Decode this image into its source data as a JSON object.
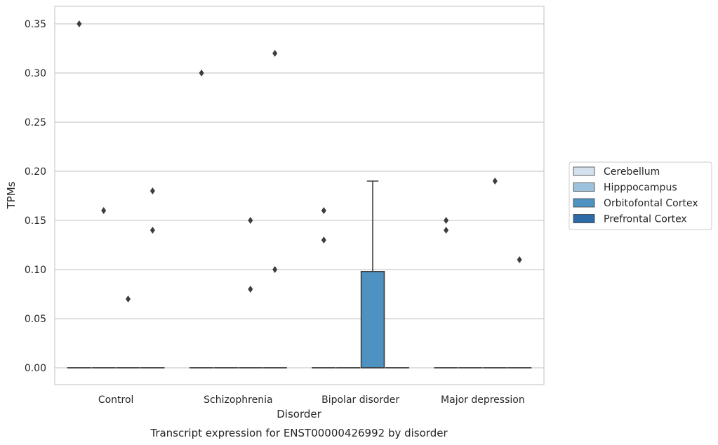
{
  "chart_data": {
    "type": "box",
    "title": "Transcript expression for ENST00000426992 by disorder",
    "xlabel": "Disorder",
    "ylabel": "TPMs",
    "ylim": [
      -0.0175,
      0.3675
    ],
    "yticks": [
      "0.00",
      "0.05",
      "0.10",
      "0.15",
      "0.20",
      "0.25",
      "0.30",
      "0.35"
    ],
    "ytick_values": [
      0,
      0.05,
      0.1,
      0.15,
      0.2,
      0.25,
      0.3,
      0.35
    ],
    "grid": "horizontal",
    "legend_position": "center-right",
    "categories": [
      "Control",
      "Schizophrenia",
      "Bipolar disorder",
      "Major depression"
    ],
    "series": [
      {
        "name": "Cerebellum",
        "color": "#d4e2ef",
        "boxes": [
          {
            "q1": 0,
            "median": 0,
            "q3": 0,
            "whisker_low": 0,
            "whisker_high": 0,
            "outliers": [
              0.35
            ]
          },
          {
            "q1": 0,
            "median": 0,
            "q3": 0,
            "whisker_low": 0,
            "whisker_high": 0,
            "outliers": [
              0.3
            ]
          },
          {
            "q1": 0,
            "median": 0,
            "q3": 0,
            "whisker_low": 0,
            "whisker_high": 0,
            "outliers": [
              0.16,
              0.13
            ]
          },
          {
            "q1": 0,
            "median": 0,
            "q3": 0,
            "whisker_low": 0,
            "whisker_high": 0,
            "outliers": [
              0.15,
              0.14
            ]
          }
        ]
      },
      {
        "name": "Hipppocampus",
        "color": "#9cc3dd",
        "boxes": [
          {
            "q1": 0,
            "median": 0,
            "q3": 0,
            "whisker_low": 0,
            "whisker_high": 0,
            "outliers": [
              0.16
            ]
          },
          {
            "q1": 0,
            "median": 0,
            "q3": 0,
            "whisker_low": 0,
            "whisker_high": 0,
            "outliers": []
          },
          {
            "q1": 0,
            "median": 0,
            "q3": 0,
            "whisker_low": 0,
            "whisker_high": 0,
            "outliers": []
          },
          {
            "q1": 0,
            "median": 0,
            "q3": 0,
            "whisker_low": 0,
            "whisker_high": 0,
            "outliers": []
          }
        ]
      },
      {
        "name": "Orbitofontal Cortex",
        "color": "#4d92c0",
        "boxes": [
          {
            "q1": 0,
            "median": 0,
            "q3": 0,
            "whisker_low": 0,
            "whisker_high": 0,
            "outliers": [
              0.07
            ]
          },
          {
            "q1": 0,
            "median": 0,
            "q3": 0,
            "whisker_low": 0,
            "whisker_high": 0,
            "outliers": [
              0.15,
              0.08
            ]
          },
          {
            "q1": 0,
            "median": 0,
            "q3": 0.098,
            "whisker_low": 0,
            "whisker_high": 0.19,
            "outliers": []
          },
          {
            "q1": 0,
            "median": 0,
            "q3": 0,
            "whisker_low": 0,
            "whisker_high": 0,
            "outliers": [
              0.19
            ]
          }
        ]
      },
      {
        "name": "Prefrontal Cortex",
        "color": "#2c6ba6",
        "boxes": [
          {
            "q1": 0,
            "median": 0,
            "q3": 0,
            "whisker_low": 0,
            "whisker_high": 0,
            "outliers": [
              0.18,
              0.14
            ]
          },
          {
            "q1": 0,
            "median": 0,
            "q3": 0,
            "whisker_low": 0,
            "whisker_high": 0,
            "outliers": [
              0.32,
              0.1
            ]
          },
          {
            "q1": 0,
            "median": 0,
            "q3": 0,
            "whisker_low": 0,
            "whisker_high": 0,
            "outliers": []
          },
          {
            "q1": 0,
            "median": 0,
            "q3": 0,
            "whisker_low": 0,
            "whisker_high": 0,
            "outliers": [
              0.11
            ]
          }
        ]
      }
    ]
  }
}
